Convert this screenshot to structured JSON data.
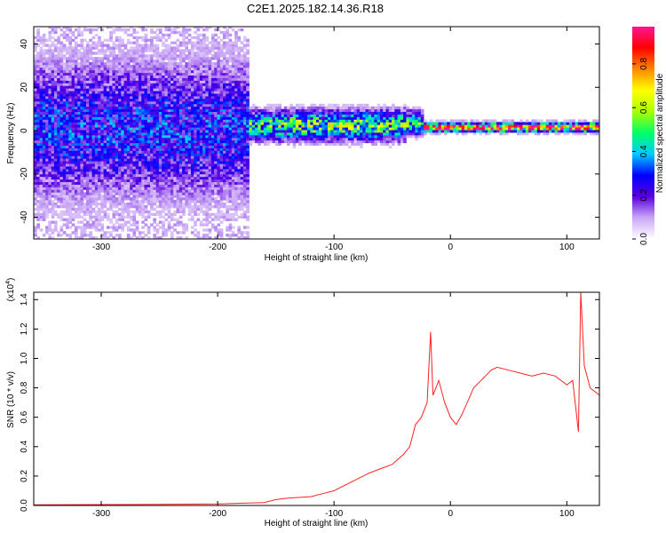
{
  "page_title": "C2E1.2025.182.14.36.R18",
  "chart_data": [
    {
      "type": "heatmap",
      "xlabel": "Height of straight line (km)",
      "ylabel": "Frequency (Hz)",
      "xlim": [
        -358,
        128
      ],
      "ylim": [
        -50,
        48
      ],
      "xticks": [
        -300,
        -200,
        -100,
        0,
        100
      ],
      "yticks": [
        -40,
        -20,
        0,
        20,
        40
      ],
      "colorbar": {
        "label": "Normalized spectral amplitude",
        "range": [
          0,
          0.97
        ],
        "ticks": [
          0.0,
          0.2,
          0.4,
          0.6,
          0.8
        ],
        "colormap": [
          "#ffffff",
          "#c9a6f5",
          "#5a00e0",
          "#0000ff",
          "#00ccff",
          "#00ff66",
          "#aaff00",
          "#ffff00",
          "#ff8800",
          "#ff0000",
          "#ff1493"
        ]
      },
      "regions": [
        {
          "x_range": [
            -358,
            -175
          ],
          "center_freq": 0,
          "spread_hz": 48,
          "peak_amplitude": 0.3
        },
        {
          "x_range": [
            -175,
            -150
          ],
          "center_freq": 2,
          "spread_hz": 10,
          "peak_amplitude": 0.5
        },
        {
          "x_range": [
            -150,
            -40
          ],
          "center_freq": 2,
          "spread_hz": 10,
          "peak_amplitude": 0.55
        },
        {
          "x_range": [
            -40,
            -25
          ],
          "center_freq": 3,
          "spread_hz": 8,
          "peak_amplitude": 0.5
        },
        {
          "x_range": [
            -25,
            128
          ],
          "center_freq": 1,
          "spread_hz": 3,
          "peak_amplitude": 0.9
        }
      ]
    },
    {
      "type": "line",
      "xlabel": "Height of straight line (km)",
      "ylabel": "SNR (10 * v/v)",
      "y_multiplier": "(x10^4)",
      "xlim": [
        -358,
        128
      ],
      "ylim": [
        0,
        1.45
      ],
      "xticks": [
        -300,
        -200,
        -100,
        0,
        100
      ],
      "yticks": [
        0.0,
        0.2,
        0.4,
        0.6,
        0.8,
        1.0,
        1.2,
        1.4
      ],
      "series": [
        {
          "color": "#ff2020",
          "x": [
            -358,
            -300,
            -250,
            -200,
            -160,
            -150,
            -140,
            -120,
            -110,
            -100,
            -90,
            -80,
            -70,
            -60,
            -50,
            -40,
            -35,
            -30,
            -25,
            -20,
            -17,
            -15,
            -10,
            -5,
            0,
            5,
            10,
            20,
            30,
            35,
            40,
            50,
            60,
            70,
            80,
            90,
            100,
            105,
            110,
            112,
            115,
            120,
            128
          ],
          "y": [
            0.005,
            0.006,
            0.008,
            0.01,
            0.02,
            0.04,
            0.05,
            0.06,
            0.08,
            0.1,
            0.14,
            0.18,
            0.22,
            0.25,
            0.28,
            0.35,
            0.4,
            0.55,
            0.6,
            0.7,
            1.18,
            0.75,
            0.85,
            0.7,
            0.6,
            0.55,
            0.62,
            0.8,
            0.88,
            0.92,
            0.94,
            0.92,
            0.9,
            0.88,
            0.9,
            0.88,
            0.82,
            0.85,
            0.5,
            1.45,
            0.95,
            0.8,
            0.75
          ]
        }
      ]
    }
  ]
}
